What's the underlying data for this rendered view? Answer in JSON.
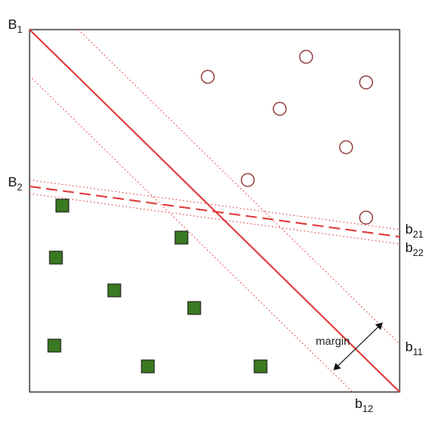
{
  "line_labels": [
    {
      "text": "B",
      "subscript": "1"
    },
    {
      "text": "B",
      "subscript": "2"
    },
    {
      "text": "b",
      "subscript": "21"
    },
    {
      "text": "b",
      "subscript": "22"
    },
    {
      "text": "b",
      "subscript": "11"
    },
    {
      "text": "b",
      "subscript": "12"
    }
  ],
  "margin_label": "margin"
}
